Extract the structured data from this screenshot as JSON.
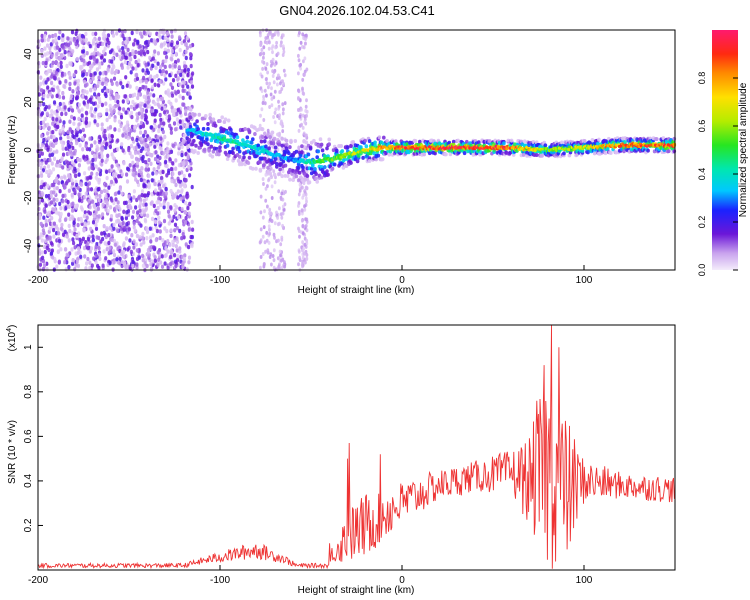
{
  "title": "GN04.2026.102.04.53.C41",
  "chart_data": [
    {
      "type": "heatmap",
      "name": "spectrogram",
      "xlabel": "Height of straight line (km)",
      "ylabel": "Frequency (Hz)",
      "xlim": [
        -200,
        150
      ],
      "ylim": [
        -50,
        50
      ],
      "xticks": [
        -200,
        -100,
        0,
        100
      ],
      "xtick_labels": [
        "-200",
        "-100",
        "0",
        "100"
      ],
      "yticks": [
        -40,
        -20,
        0,
        20,
        40
      ],
      "ytick_labels": [
        "-40",
        "-20",
        "0",
        "20",
        "40"
      ],
      "colorbar": {
        "label": "Normalized spectral amplitude",
        "range": [
          0,
          1
        ],
        "ticks": [
          0.0,
          0.2,
          0.4,
          0.6,
          0.8
        ],
        "tick_labels": [
          "0.0",
          "0.2",
          "0.4",
          "0.6",
          "0.8"
        ]
      },
      "ridge": [
        {
          "x": -115,
          "freq": 8,
          "amp": 0.35
        },
        {
          "x": -100,
          "freq": 5,
          "amp": 0.45
        },
        {
          "x": -85,
          "freq": 2,
          "amp": 0.4
        },
        {
          "x": -70,
          "freq": -2,
          "amp": 0.35
        },
        {
          "x": -60,
          "freq": -4,
          "amp": 0.3
        },
        {
          "x": -50,
          "freq": -5,
          "amp": 0.45
        },
        {
          "x": -40,
          "freq": -4,
          "amp": 0.55
        },
        {
          "x": -30,
          "freq": -2,
          "amp": 0.6
        },
        {
          "x": -20,
          "freq": 0,
          "amp": 0.7
        },
        {
          "x": -10,
          "freq": 1,
          "amp": 0.8
        },
        {
          "x": 0,
          "freq": 1,
          "amp": 0.9
        },
        {
          "x": 30,
          "freq": 1,
          "amp": 0.95
        },
        {
          "x": 60,
          "freq": 1,
          "amp": 0.9
        },
        {
          "x": 80,
          "freq": 0,
          "amp": 0.6
        },
        {
          "x": 100,
          "freq": 1,
          "amp": 0.7
        },
        {
          "x": 120,
          "freq": 2,
          "amp": 0.85
        },
        {
          "x": 150,
          "freq": 2,
          "amp": 0.9
        }
      ]
    },
    {
      "type": "line",
      "name": "snr",
      "xlabel": "Height of straight line (km)",
      "ylabel": "SNR (10 * v/v)",
      "scale_label": "(x10",
      "scale_exponent": "4",
      "color": "#ee3333",
      "xlim": [
        -200,
        150
      ],
      "ylim": [
        0,
        1.1
      ],
      "xticks": [
        -200,
        -100,
        0,
        100
      ],
      "xtick_labels": [
        "-200",
        "-100",
        "0",
        "100"
      ],
      "yticks": [
        0.2,
        0.4,
        0.6,
        0.8,
        1
      ],
      "ytick_labels": [
        "0.2",
        "0.4",
        "0.6",
        "0.8",
        "1"
      ],
      "envelope": [
        {
          "x": -200,
          "base": 0.02,
          "noise": 0.01
        },
        {
          "x": -120,
          "base": 0.02,
          "noise": 0.01
        },
        {
          "x": -105,
          "base": 0.05,
          "noise": 0.02
        },
        {
          "x": -80,
          "base": 0.09,
          "noise": 0.04
        },
        {
          "x": -65,
          "base": 0.05,
          "noise": 0.02
        },
        {
          "x": -58,
          "base": 0.02,
          "noise": 0.01
        },
        {
          "x": -40,
          "base": 0.02,
          "noise": 0.01
        },
        {
          "x": -38,
          "base": 0.08,
          "noise": 0.05
        },
        {
          "x": -30,
          "base": 0.15,
          "noise": 0.12
        },
        {
          "x": -20,
          "base": 0.2,
          "noise": 0.15
        },
        {
          "x": -10,
          "base": 0.25,
          "noise": 0.12
        },
        {
          "x": 0,
          "base": 0.3,
          "noise": 0.1
        },
        {
          "x": 20,
          "base": 0.38,
          "noise": 0.07
        },
        {
          "x": 40,
          "base": 0.42,
          "noise": 0.07
        },
        {
          "x": 60,
          "base": 0.44,
          "noise": 0.1
        },
        {
          "x": 70,
          "base": 0.4,
          "noise": 0.2
        },
        {
          "x": 80,
          "base": 0.45,
          "noise": 0.45
        },
        {
          "x": 90,
          "base": 0.35,
          "noise": 0.35
        },
        {
          "x": 100,
          "base": 0.4,
          "noise": 0.1
        },
        {
          "x": 120,
          "base": 0.38,
          "noise": 0.06
        },
        {
          "x": 150,
          "base": 0.36,
          "noise": 0.06
        }
      ],
      "peaks": [
        {
          "x": -40,
          "y": 0.12
        },
        {
          "x": -30,
          "y": 0.5
        },
        {
          "x": -29,
          "y": 0.57
        },
        {
          "x": -12,
          "y": 0.52
        },
        {
          "x": 82,
          "y": 1.1
        },
        {
          "x": 78,
          "y": 0.92
        },
        {
          "x": 86,
          "y": 1.0
        },
        {
          "x": 74,
          "y": 0.76
        }
      ]
    }
  ]
}
